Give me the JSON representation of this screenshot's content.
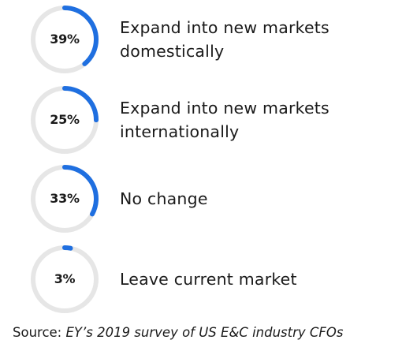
{
  "chart_data": {
    "type": "donut",
    "series": [
      {
        "value": 39,
        "display": "39%",
        "label": "Expand into new markets domestically"
      },
      {
        "value": 25,
        "display": "25%",
        "label": "Expand into new markets internationally"
      },
      {
        "value": 33,
        "display": "33%",
        "label": "No change"
      },
      {
        "value": 3,
        "display": "3%",
        "label": "Leave current market"
      }
    ],
    "colors": {
      "accent": "#1f6fe0",
      "track": "#e6e6e6"
    }
  },
  "source": {
    "prefix": "Source: ",
    "text": "EY’s 2019 survey of US E&C industry CFOs"
  }
}
